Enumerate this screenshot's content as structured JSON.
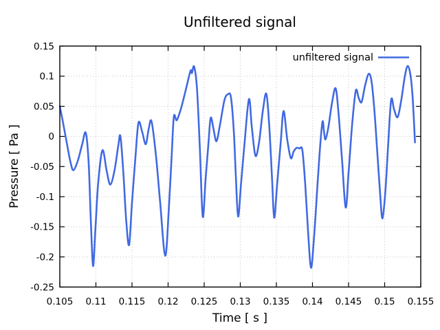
{
  "figure": {
    "background_color": "#ffffff",
    "border_color": "#000000"
  },
  "chart_data": {
    "type": "line",
    "title": "Unfiltered signal",
    "xlabel": "Time [ s ]",
    "ylabel": "Pressure [ Pa ]",
    "grid": true,
    "legend_position": "top-right-inside",
    "line_color": "#4169e1",
    "grid_color": "#c4c4c4",
    "xlim": [
      0.105,
      0.155
    ],
    "ylim": [
      -0.25,
      0.15
    ],
    "x_ticks": [
      0.105,
      0.11,
      0.115,
      0.12,
      0.125,
      0.13,
      0.135,
      0.14,
      0.145,
      0.15,
      0.155
    ],
    "x_tick_labels": [
      "0.105",
      "0.11",
      "0.115",
      "0.12",
      "0.125",
      "0.13",
      "0.135",
      "0.14",
      "0.145",
      "0.15",
      "0.155"
    ],
    "y_ticks": [
      0.15,
      0.1,
      0.05,
      0,
      -0.05,
      -0.1,
      -0.15,
      -0.2,
      -0.25
    ],
    "y_tick_labels": [
      "0.15",
      "0.1",
      "0.05",
      "0",
      "-0.05",
      "-0.1",
      "-0.15",
      "-0.2",
      "-0.25"
    ],
    "series": [
      {
        "name": "unfiltered signal",
        "points": [
          [
            0.105,
            0.05
          ],
          [
            0.1054,
            0.026
          ],
          [
            0.106,
            -0.013
          ],
          [
            0.1065,
            -0.044
          ],
          [
            0.1069,
            -0.056
          ],
          [
            0.1075,
            -0.04
          ],
          [
            0.1081,
            -0.013
          ],
          [
            0.1086,
            0.006
          ],
          [
            0.109,
            -0.045
          ],
          [
            0.1093,
            -0.14
          ],
          [
            0.1096,
            -0.215
          ],
          [
            0.1099,
            -0.16
          ],
          [
            0.1103,
            -0.08
          ],
          [
            0.1109,
            -0.023
          ],
          [
            0.1115,
            -0.058
          ],
          [
            0.112,
            -0.08
          ],
          [
            0.1126,
            -0.055
          ],
          [
            0.1131,
            -0.015
          ],
          [
            0.1134,
            0.0
          ],
          [
            0.1138,
            -0.06
          ],
          [
            0.1142,
            -0.14
          ],
          [
            0.1146,
            -0.18
          ],
          [
            0.115,
            -0.11
          ],
          [
            0.1155,
            -0.03
          ],
          [
            0.1159,
            0.023
          ],
          [
            0.1164,
            0.008
          ],
          [
            0.1169,
            -0.013
          ],
          [
            0.1173,
            0.012
          ],
          [
            0.1177,
            0.025
          ],
          [
            0.1183,
            -0.03
          ],
          [
            0.1189,
            -0.11
          ],
          [
            0.1196,
            -0.198
          ],
          [
            0.1201,
            -0.12
          ],
          [
            0.1205,
            -0.03
          ],
          [
            0.1208,
            0.033
          ],
          [
            0.1212,
            0.027
          ],
          [
            0.1218,
            0.047
          ],
          [
            0.1225,
            0.08
          ],
          [
            0.1231,
            0.109
          ],
          [
            0.1233,
            0.105
          ],
          [
            0.1236,
            0.116
          ],
          [
            0.124,
            0.08
          ],
          [
            0.1244,
            -0.02
          ],
          [
            0.1248,
            -0.133
          ],
          [
            0.1252,
            -0.07
          ],
          [
            0.1256,
            -0.01
          ],
          [
            0.1259,
            0.031
          ],
          [
            0.1263,
            0.012
          ],
          [
            0.1267,
            -0.008
          ],
          [
            0.1272,
            0.02
          ],
          [
            0.1278,
            0.06
          ],
          [
            0.1283,
            0.07
          ],
          [
            0.1287,
            0.065
          ],
          [
            0.1291,
            0.01
          ],
          [
            0.1294,
            -0.07
          ],
          [
            0.1297,
            -0.133
          ],
          [
            0.1301,
            -0.08
          ],
          [
            0.1306,
            -0.01
          ],
          [
            0.1312,
            0.062
          ],
          [
            0.1316,
            0.015
          ],
          [
            0.1321,
            -0.032
          ],
          [
            0.1326,
            -0.01
          ],
          [
            0.1331,
            0.04
          ],
          [
            0.1336,
            0.071
          ],
          [
            0.134,
            0.02
          ],
          [
            0.1344,
            -0.07
          ],
          [
            0.1347,
            -0.135
          ],
          [
            0.1351,
            -0.08
          ],
          [
            0.1356,
            -0.01
          ],
          [
            0.136,
            0.042
          ],
          [
            0.1365,
            -0.005
          ],
          [
            0.137,
            -0.036
          ],
          [
            0.1374,
            -0.025
          ],
          [
            0.1378,
            -0.019
          ],
          [
            0.1382,
            -0.02
          ],
          [
            0.1386,
            -0.023
          ],
          [
            0.139,
            -0.08
          ],
          [
            0.1394,
            -0.16
          ],
          [
            0.1398,
            -0.218
          ],
          [
            0.1402,
            -0.17
          ],
          [
            0.1407,
            -0.08
          ],
          [
            0.1411,
            -0.01
          ],
          [
            0.1414,
            0.025
          ],
          [
            0.1416,
            0.008
          ],
          [
            0.1418,
            -0.005
          ],
          [
            0.1422,
            0.015
          ],
          [
            0.1427,
            0.055
          ],
          [
            0.1432,
            0.08
          ],
          [
            0.1436,
            0.04
          ],
          [
            0.1441,
            -0.04
          ],
          [
            0.1446,
            -0.118
          ],
          [
            0.145,
            -0.06
          ],
          [
            0.1455,
            0.02
          ],
          [
            0.146,
            0.076
          ],
          [
            0.1464,
            0.064
          ],
          [
            0.1468,
            0.057
          ],
          [
            0.1473,
            0.085
          ],
          [
            0.1478,
            0.104
          ],
          [
            0.1482,
            0.09
          ],
          [
            0.1486,
            0.04
          ],
          [
            0.149,
            -0.03
          ],
          [
            0.1494,
            -0.1
          ],
          [
            0.1497,
            -0.136
          ],
          [
            0.1501,
            -0.09
          ],
          [
            0.1505,
            -0.01
          ],
          [
            0.1509,
            0.061
          ],
          [
            0.1513,
            0.045
          ],
          [
            0.1518,
            0.032
          ],
          [
            0.1523,
            0.06
          ],
          [
            0.1528,
            0.1
          ],
          [
            0.1532,
            0.117
          ],
          [
            0.1536,
            0.1
          ],
          [
            0.1539,
            0.06
          ],
          [
            0.1542,
            -0.01
          ]
        ]
      }
    ]
  }
}
